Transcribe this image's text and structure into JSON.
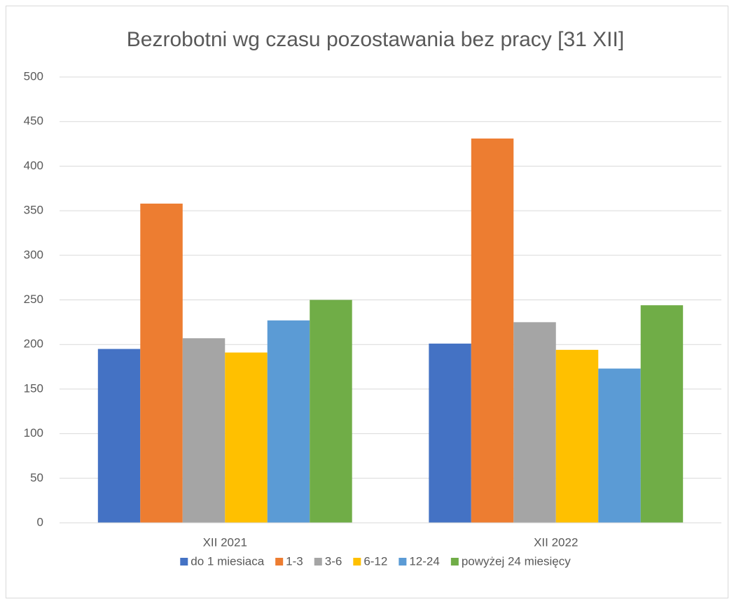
{
  "chart_data": {
    "type": "bar",
    "title": "Bezrobotni wg czasu pozostawania bez pracy [31 XII]",
    "categories": [
      "XII 2021",
      "XII 2022"
    ],
    "series": [
      {
        "name": "do 1 miesiaca",
        "color": "#4472c4",
        "values": [
          195,
          201
        ]
      },
      {
        "name": "1-3",
        "color": "#ed7d31",
        "values": [
          358,
          431
        ]
      },
      {
        "name": "3-6",
        "color": "#a5a5a5",
        "values": [
          207,
          225
        ]
      },
      {
        "name": "6-12",
        "color": "#ffc000",
        "values": [
          191,
          194
        ]
      },
      {
        "name": "12-24",
        "color": "#5b9bd5",
        "values": [
          227,
          173
        ]
      },
      {
        "name": "powyżej 24 miesięcy",
        "color": "#70ad47",
        "values": [
          250,
          244
        ]
      }
    ],
    "ylim": [
      0,
      500
    ],
    "yticks": [
      0,
      50,
      100,
      150,
      200,
      250,
      300,
      350,
      400,
      450,
      500
    ],
    "grid": true,
    "legend": "bottom"
  }
}
